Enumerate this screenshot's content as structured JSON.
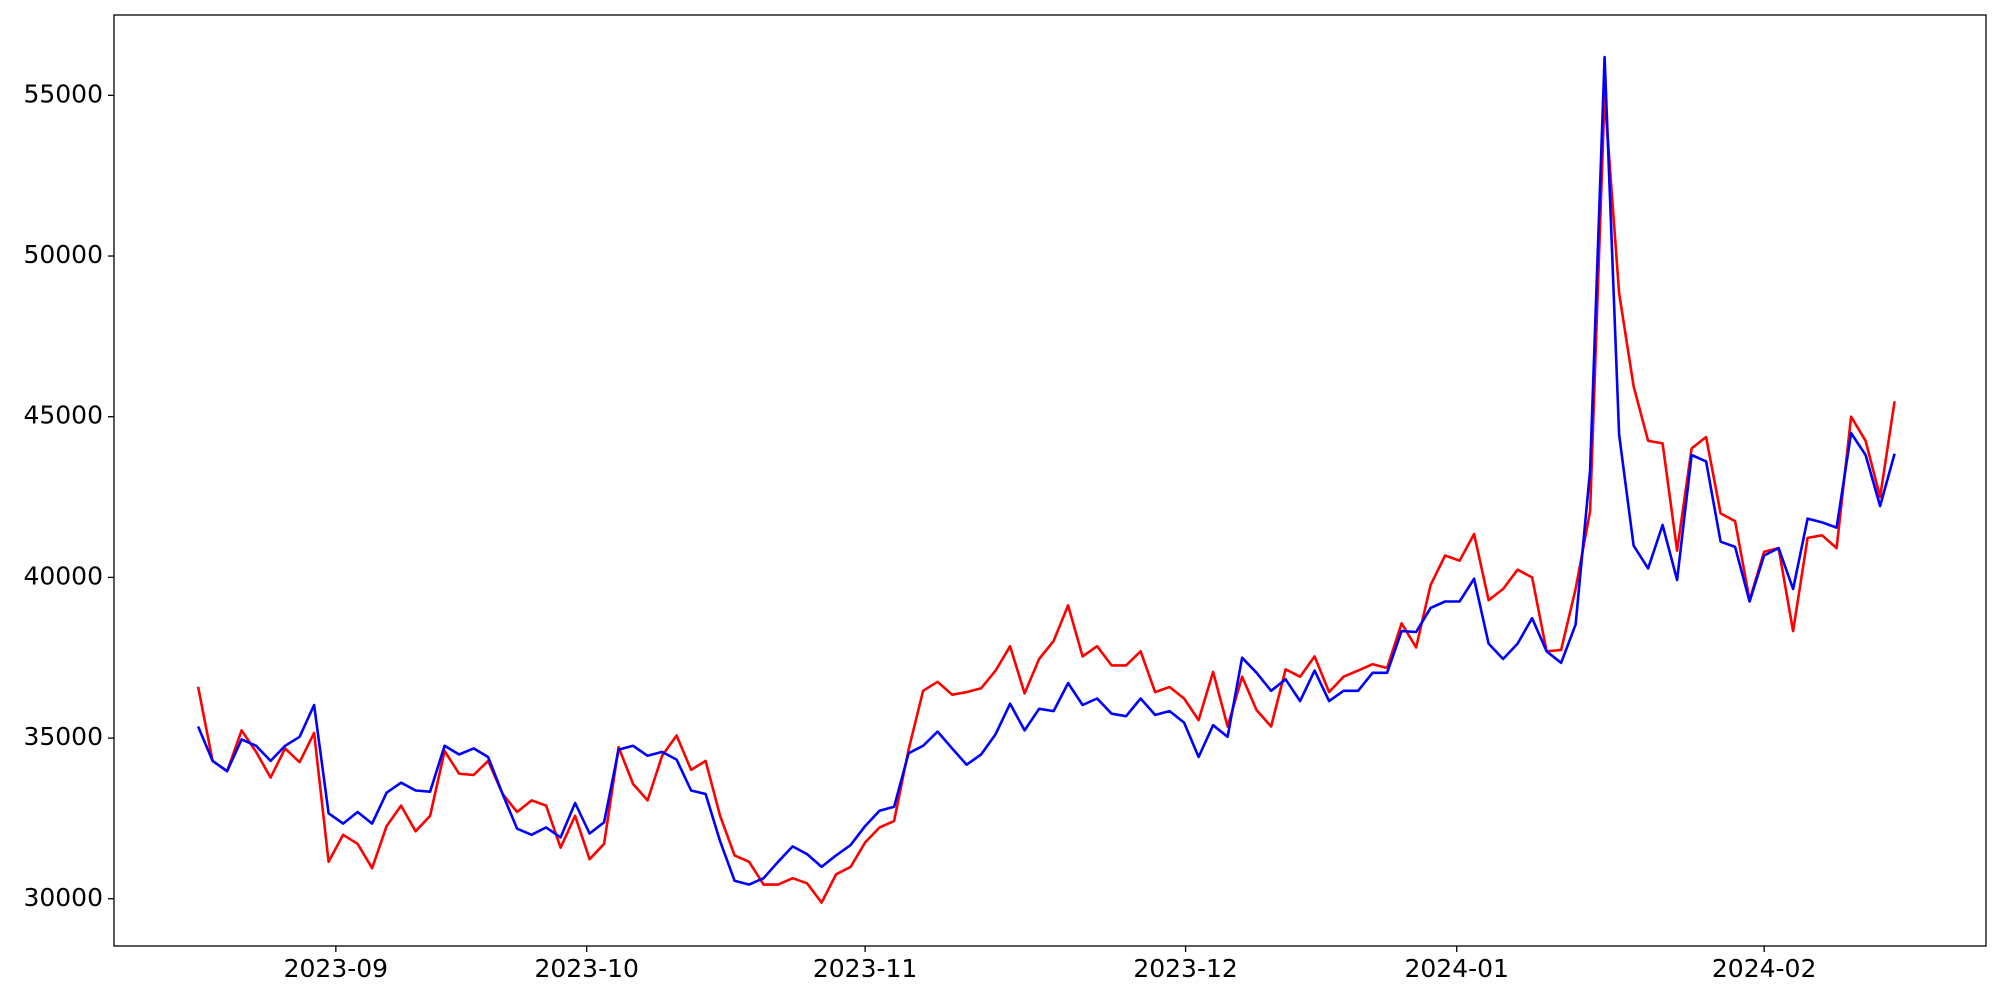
{
  "chart_data": {
    "type": "line",
    "categories": [
      null,
      null,
      null,
      null,
      null,
      null,
      null,
      null,
      null,
      null,
      null,
      null,
      null,
      null,
      null,
      null,
      null,
      null,
      null,
      null,
      null,
      null,
      null,
      null,
      null,
      null,
      null,
      null,
      null,
      null,
      null,
      null,
      null,
      null,
      null,
      null,
      null,
      null,
      null,
      null,
      null,
      null,
      null,
      null,
      null,
      null,
      null,
      null,
      null,
      null,
      null,
      null,
      null,
      null,
      null,
      null,
      null,
      null,
      null,
      null,
      null,
      null,
      null,
      null,
      null,
      null,
      null,
      null,
      null,
      null,
      null,
      null,
      null,
      null,
      null,
      null,
      null,
      null,
      null,
      null,
      null,
      null,
      null,
      null,
      null,
      null,
      null,
      null,
      null,
      null,
      null,
      null,
      null,
      null,
      null,
      null,
      null,
      null,
      null,
      null,
      null,
      null,
      null,
      null,
      null,
      null,
      null,
      null,
      null,
      null,
      null,
      null,
      null,
      null,
      null,
      null,
      null,
      null
    ],
    "series": [
      {
        "color": "#ff0000",
        "values": [
          36600,
          34290,
          33970,
          35240,
          34570,
          33770,
          34680,
          34250,
          35160,
          31150,
          31990,
          31710,
          30950,
          32260,
          32900,
          32100,
          32580,
          34600,
          33890,
          33850,
          34290,
          33260,
          32700,
          33060,
          32900,
          31590,
          32580,
          31230,
          31710,
          34720,
          33570,
          33060,
          34450,
          35080,
          34010,
          34290,
          32580,
          31350,
          31150,
          30440,
          30440,
          30640,
          30480,
          29880,
          30760,
          30990,
          31750,
          32220,
          32420,
          34640,
          36470,
          36750,
          36350,
          36430,
          36550,
          37100,
          37860,
          36390,
          37460,
          38020,
          39130,
          37540,
          37860,
          37260,
          37260,
          37700,
          36430,
          36590,
          36230,
          35560,
          37060,
          35360,
          36910,
          35870,
          35360,
          37140,
          36910,
          37540,
          36430,
          36910,
          37100,
          37300,
          37180,
          38570,
          37820,
          39760,
          40680,
          40520,
          41350,
          39290,
          39640,
          40240,
          40000,
          37700,
          37740,
          39640,
          42060,
          55000,
          48850,
          45950,
          44250,
          44170,
          40830,
          44010,
          44370,
          41990,
          41750,
          39290,
          40800,
          40910,
          38330,
          41230,
          41310,
          40910,
          45000,
          44250,
          42500,
          45480
        ]
      },
      {
        "color": "#0000ff",
        "values": [
          35360,
          34290,
          33970,
          34960,
          34760,
          34290,
          34760,
          35040,
          36030,
          32660,
          32340,
          32700,
          32340,
          33300,
          33610,
          33370,
          33330,
          34760,
          34490,
          34680,
          34410,
          33260,
          32180,
          31990,
          32220,
          31910,
          32980,
          32030,
          32380,
          34640,
          34760,
          34450,
          34570,
          34330,
          33370,
          33260,
          31790,
          30560,
          30440,
          30640,
          31150,
          31630,
          31390,
          30990,
          31350,
          31670,
          32260,
          32740,
          32860,
          34530,
          34760,
          35200,
          34680,
          34170,
          34490,
          35120,
          36070,
          35240,
          35910,
          35840,
          36710,
          36030,
          36230,
          35760,
          35680,
          36230,
          35720,
          35840,
          35480,
          34410,
          35400,
          35040,
          37500,
          37030,
          36470,
          36830,
          36150,
          37100,
          36150,
          36470,
          36470,
          37030,
          37030,
          38330,
          38300,
          39050,
          39250,
          39250,
          39960,
          37940,
          37460,
          37940,
          38730,
          37700,
          37340,
          38530,
          43330,
          56190,
          44450,
          40990,
          40280,
          41630,
          39920,
          43810,
          43610,
          41110,
          40950,
          39250,
          40680,
          40910,
          39640,
          41830,
          41710,
          41550,
          44490,
          43810,
          42220,
          43850
        ]
      }
    ],
    "xlim": [
      -5.8,
      123.3
    ],
    "xticks": [
      {
        "value": 9.5,
        "label": "2023-09"
      },
      {
        "value": 26.8,
        "label": "2023-10"
      },
      {
        "value": 46,
        "label": "2023-11"
      },
      {
        "value": 68.1,
        "label": "2023-12"
      },
      {
        "value": 86.8,
        "label": "2024-01"
      },
      {
        "value": 108,
        "label": "2024-02"
      }
    ],
    "ylim": [
      28530,
      57500
    ],
    "yticks": [
      30000,
      35000,
      40000,
      45000,
      50000,
      55000
    ],
    "grid": false
  }
}
